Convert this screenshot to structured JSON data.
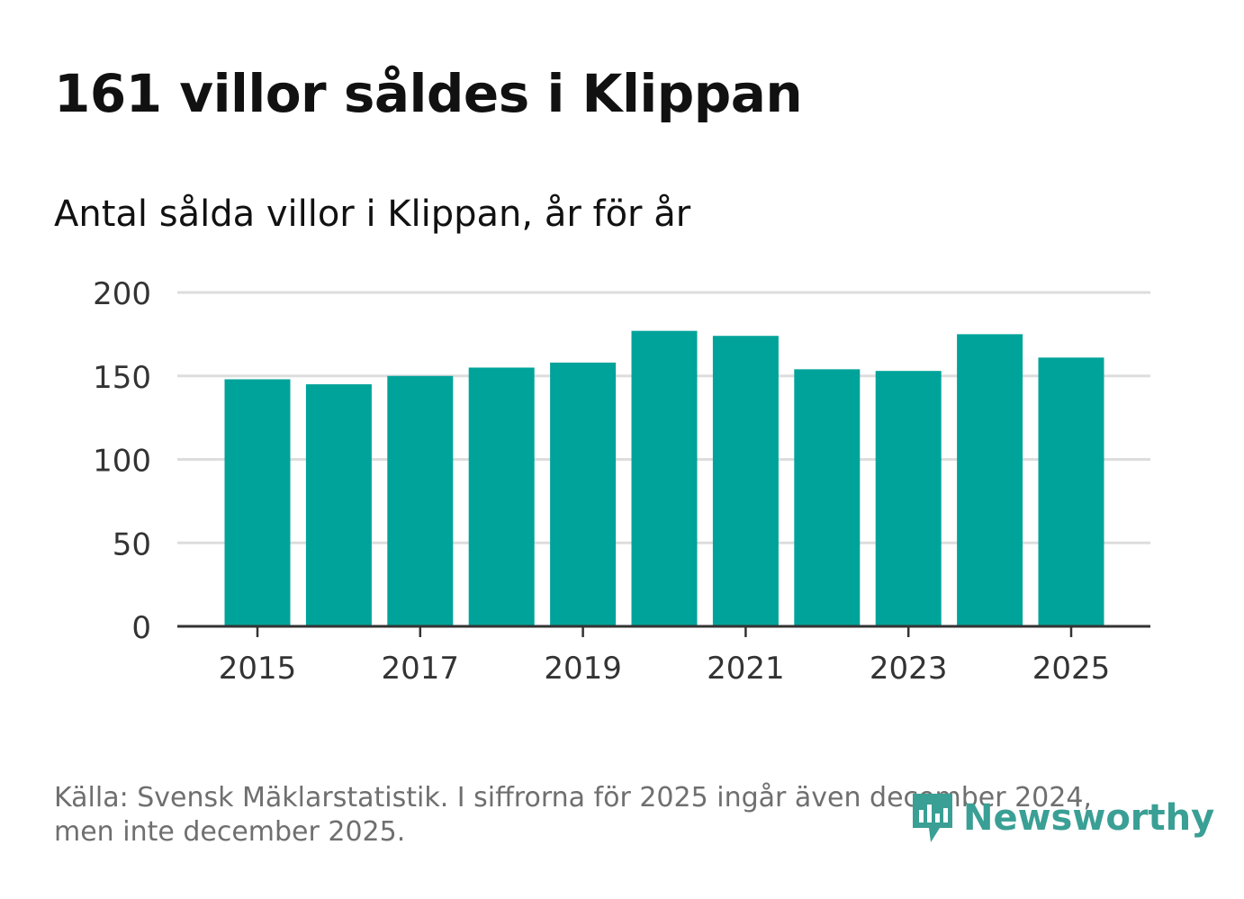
{
  "title": "161 villor såldes i Klippan",
  "subtitle": "Antal sålda villor i Klippan, år för år",
  "source": "Källa: Svensk Mäklarstatistik. I siffrorna för 2025 ingår även december 2024, men inte december 2025.",
  "logo_text": "Newsworthy",
  "colors": {
    "bar": "#00a39a",
    "grid": "#dddddd",
    "axis": "#333333",
    "logo": "#3a9f94"
  },
  "chart_data": {
    "type": "bar",
    "title": "Antal sålda villor i Klippan, år för år",
    "xlabel": "",
    "ylabel": "",
    "categories": [
      "2015",
      "2016",
      "2017",
      "2018",
      "2019",
      "2020",
      "2021",
      "2022",
      "2023",
      "2024",
      "2025"
    ],
    "values": [
      148,
      145,
      150,
      155,
      158,
      177,
      174,
      154,
      153,
      175,
      161
    ],
    "ylim": [
      0,
      200
    ],
    "yticks": [
      0,
      50,
      100,
      150,
      200
    ],
    "xtick_labels": [
      "2015",
      "2017",
      "2019",
      "2021",
      "2023",
      "2025"
    ],
    "grid": true,
    "legend": "none"
  }
}
